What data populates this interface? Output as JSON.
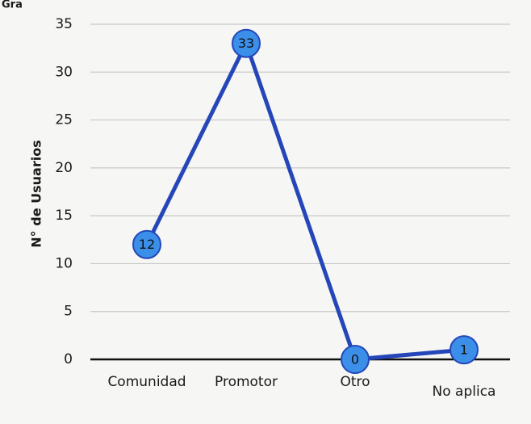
{
  "chart_data": {
    "type": "line",
    "title": "Gra",
    "y_label": "N° de Usuarios",
    "categories": [
      "Comunidad",
      "Promotor",
      "Otro",
      "No aplica"
    ],
    "values": [
      12,
      33,
      0,
      1
    ],
    "color": "#2446b8",
    "marker_color": "#3b8fe8",
    "ylim": [
      0,
      35
    ],
    "yticks": [
      0,
      5,
      10,
      15,
      20,
      25,
      30,
      35
    ],
    "grid": true
  }
}
